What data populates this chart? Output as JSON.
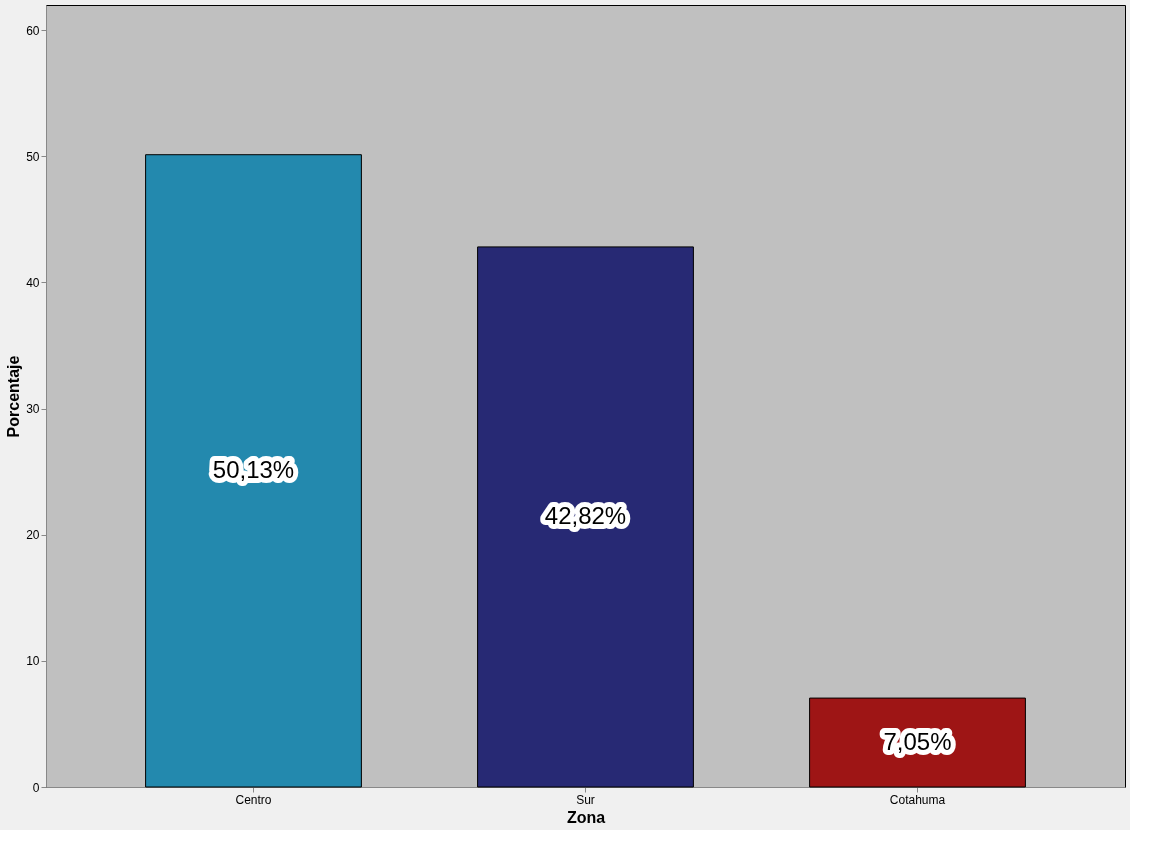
{
  "chart_data": {
    "type": "bar",
    "xlabel": "Zona",
    "ylabel": "Porcentaje",
    "categories": [
      "Centro",
      "Sur",
      "Cotahuma"
    ],
    "values": [
      50.13,
      42.82,
      7.05
    ],
    "colors": [
      "#2389ae",
      "#272974",
      "#9e1515"
    ],
    "value_labels": [
      "50,13%",
      "42,82%",
      "7,05%"
    ],
    "ylim": [
      0,
      62
    ],
    "yticks": [
      0,
      10,
      20,
      30,
      40,
      50,
      60
    ],
    "grid": false
  }
}
